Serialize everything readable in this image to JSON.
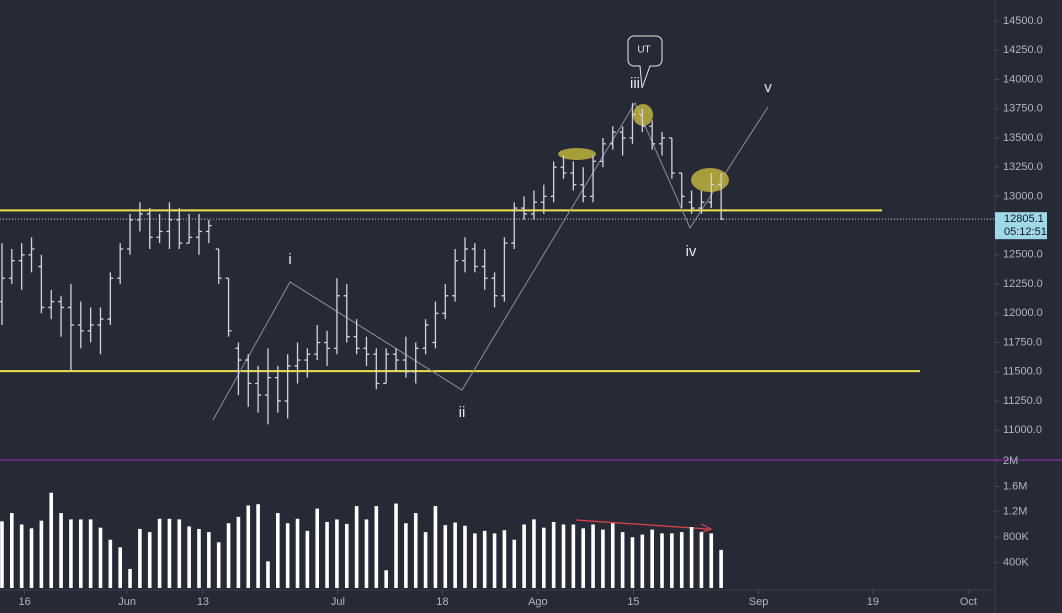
{
  "chart_data": {
    "type": "ohlc",
    "ylim": [
      10745,
      14680
    ],
    "yticks": [
      {
        "value": 11000,
        "label": "11000.0"
      },
      {
        "value": 11250,
        "label": "11250.0"
      },
      {
        "value": 11500,
        "label": "11500.0"
      },
      {
        "value": 11750,
        "label": "11750.0"
      },
      {
        "value": 12000,
        "label": "12000.0"
      },
      {
        "value": 12250,
        "label": "12250.0"
      },
      {
        "value": 12500,
        "label": "12500.0"
      },
      {
        "value": 12750,
        "label": "12750.0"
      },
      {
        "value": 13000,
        "label": "13000.0"
      },
      {
        "value": 13250,
        "label": "13250.0"
      },
      {
        "value": 13500,
        "label": "13500.0"
      },
      {
        "value": 13750,
        "label": "13750.0"
      },
      {
        "value": 14000,
        "label": "14000.0"
      },
      {
        "value": 14250,
        "label": "14250.0"
      },
      {
        "value": 14500,
        "label": "14500.0"
      }
    ],
    "xlim": [
      -0.2,
      100.8
    ],
    "xticks": [
      {
        "value": 2.3,
        "label": "16"
      },
      {
        "value": 12.7,
        "label": "Jun"
      },
      {
        "value": 20.4,
        "label": "13"
      },
      {
        "value": 34.1,
        "label": "Jul"
      },
      {
        "value": 44.7,
        "label": "18"
      },
      {
        "value": 54.4,
        "label": "Ago"
      },
      {
        "value": 64.1,
        "label": "15"
      },
      {
        "value": 76.8,
        "label": "Sep"
      },
      {
        "value": 88.4,
        "label": "19"
      },
      {
        "value": 98.1,
        "label": "Oct"
      }
    ],
    "bar_color": "#d1d4dc",
    "open": [
      12100,
      12300,
      12450,
      12500,
      12400,
      12050,
      12100,
      12050,
      11900,
      11850,
      11900,
      11950,
      12300,
      12550,
      12800,
      12850,
      12650,
      12700,
      12800,
      12600,
      12650,
      12700,
      12550,
      12300,
      11700,
      11600,
      11400,
      11300,
      11450,
      11250,
      11550,
      11600,
      11650,
      11750,
      11700,
      12150,
      11800,
      11700,
      11650,
      11400,
      11650,
      11600,
      11500,
      11700,
      11750,
      12000,
      12150,
      12450,
      12550,
      12400,
      12300,
      12150,
      12600,
      12900,
      12850,
      12950,
      13000,
      13250,
      13200,
      13100,
      13000,
      13300,
      13450,
      13550,
      13500,
      13700,
      13600,
      13450,
      13500,
      13200,
      12950,
      12900,
      12950,
      13100
    ],
    "high": [
      12600,
      12550,
      12600,
      12650,
      12500,
      12200,
      12150,
      12250,
      12100,
      12050,
      12050,
      12350,
      12600,
      12850,
      12950,
      12900,
      12850,
      12950,
      12900,
      12850,
      12850,
      12800,
      12550,
      12300,
      11750,
      11650,
      11550,
      11700,
      11550,
      11650,
      11750,
      11700,
      11900,
      11850,
      12300,
      12250,
      11950,
      11800,
      11700,
      11700,
      11700,
      11800,
      11750,
      11950,
      12100,
      12250,
      12550,
      12650,
      12600,
      12550,
      12350,
      12650,
      12950,
      13000,
      13050,
      13100,
      13300,
      13350,
      13300,
      13250,
      13350,
      13500,
      13600,
      13600,
      13800,
      13750,
      13650,
      13550,
      13500,
      13200,
      13050,
      13050,
      13200,
      13200
    ],
    "low": [
      11900,
      12250,
      12200,
      12350,
      12000,
      11950,
      11800,
      11500,
      11700,
      11750,
      11650,
      11900,
      12250,
      12500,
      12700,
      12550,
      12600,
      12550,
      12550,
      12600,
      12500,
      12600,
      12250,
      11800,
      11300,
      11200,
      11150,
      11050,
      11150,
      11100,
      11400,
      11450,
      11600,
      11550,
      11650,
      11750,
      11650,
      11550,
      11350,
      11400,
      11500,
      11450,
      11400,
      11650,
      11700,
      11950,
      12100,
      12350,
      12350,
      12200,
      12050,
      12100,
      12550,
      12800,
      12800,
      12850,
      12950,
      13150,
      13050,
      12950,
      12950,
      13250,
      13400,
      13350,
      13450,
      13550,
      13400,
      13350,
      13150,
      12900,
      12850,
      12850,
      12900,
      12800
    ],
    "close": [
      12300,
      12450,
      12500,
      12550,
      12050,
      12100,
      12050,
      11900,
      11850,
      11900,
      11950,
      12300,
      12550,
      12800,
      12850,
      12650,
      12700,
      12800,
      12600,
      12650,
      12700,
      12750,
      12300,
      11850,
      11600,
      11400,
      11300,
      11450,
      11250,
      11550,
      11600,
      11650,
      11750,
      11700,
      12150,
      11800,
      11700,
      11650,
      11400,
      11650,
      11600,
      11500,
      11700,
      11900,
      12000,
      12150,
      12450,
      12550,
      12400,
      12300,
      12150,
      12600,
      12900,
      12850,
      12950,
      13000,
      13250,
      13200,
      13100,
      13000,
      13300,
      13450,
      13550,
      13500,
      13700,
      13600,
      13450,
      13500,
      13200,
      13000,
      12900,
      12950,
      13100,
      12805.1
    ],
    "volume": {
      "color": "#ffffff",
      "ylim": [
        0,
        2000000
      ],
      "yticks": [
        {
          "value": 400000,
          "label": "400K"
        },
        {
          "value": 800000,
          "label": "800K"
        },
        {
          "value": 1200000,
          "label": "1.2M"
        },
        {
          "value": 1600000,
          "label": "1.6M"
        },
        {
          "value": 2000000,
          "label": "2M"
        }
      ],
      "values": [
        1050000,
        1180000,
        1000000,
        940000,
        1060000,
        1500000,
        1180000,
        1080000,
        1080000,
        1080000,
        950000,
        760000,
        640000,
        300000,
        930000,
        880000,
        1090000,
        1090000,
        1080000,
        970000,
        930000,
        880000,
        720000,
        1020000,
        1120000,
        1300000,
        1320000,
        420000,
        1180000,
        1020000,
        1090000,
        900000,
        1250000,
        1040000,
        1080000,
        1010000,
        1290000,
        1080000,
        1290000,
        280000,
        1330000,
        1020000,
        1180000,
        880000,
        1290000,
        990000,
        1030000,
        980000,
        860000,
        900000,
        860000,
        910000,
        760000,
        1000000,
        1080000,
        950000,
        1040000,
        1000000,
        1000000,
        940000,
        1000000,
        920000,
        1020000,
        880000,
        800000,
        840000,
        920000,
        860000,
        860000,
        880000,
        960000,
        880000,
        860000,
        600000
      ]
    },
    "levels": [
      12880,
      11505
    ],
    "level_color": "#f0e04b",
    "last_price": 12805.1,
    "countdown": "05:12:51",
    "annotations": [
      "i",
      "ii",
      "iii",
      "iv",
      "v",
      "UT"
    ]
  }
}
